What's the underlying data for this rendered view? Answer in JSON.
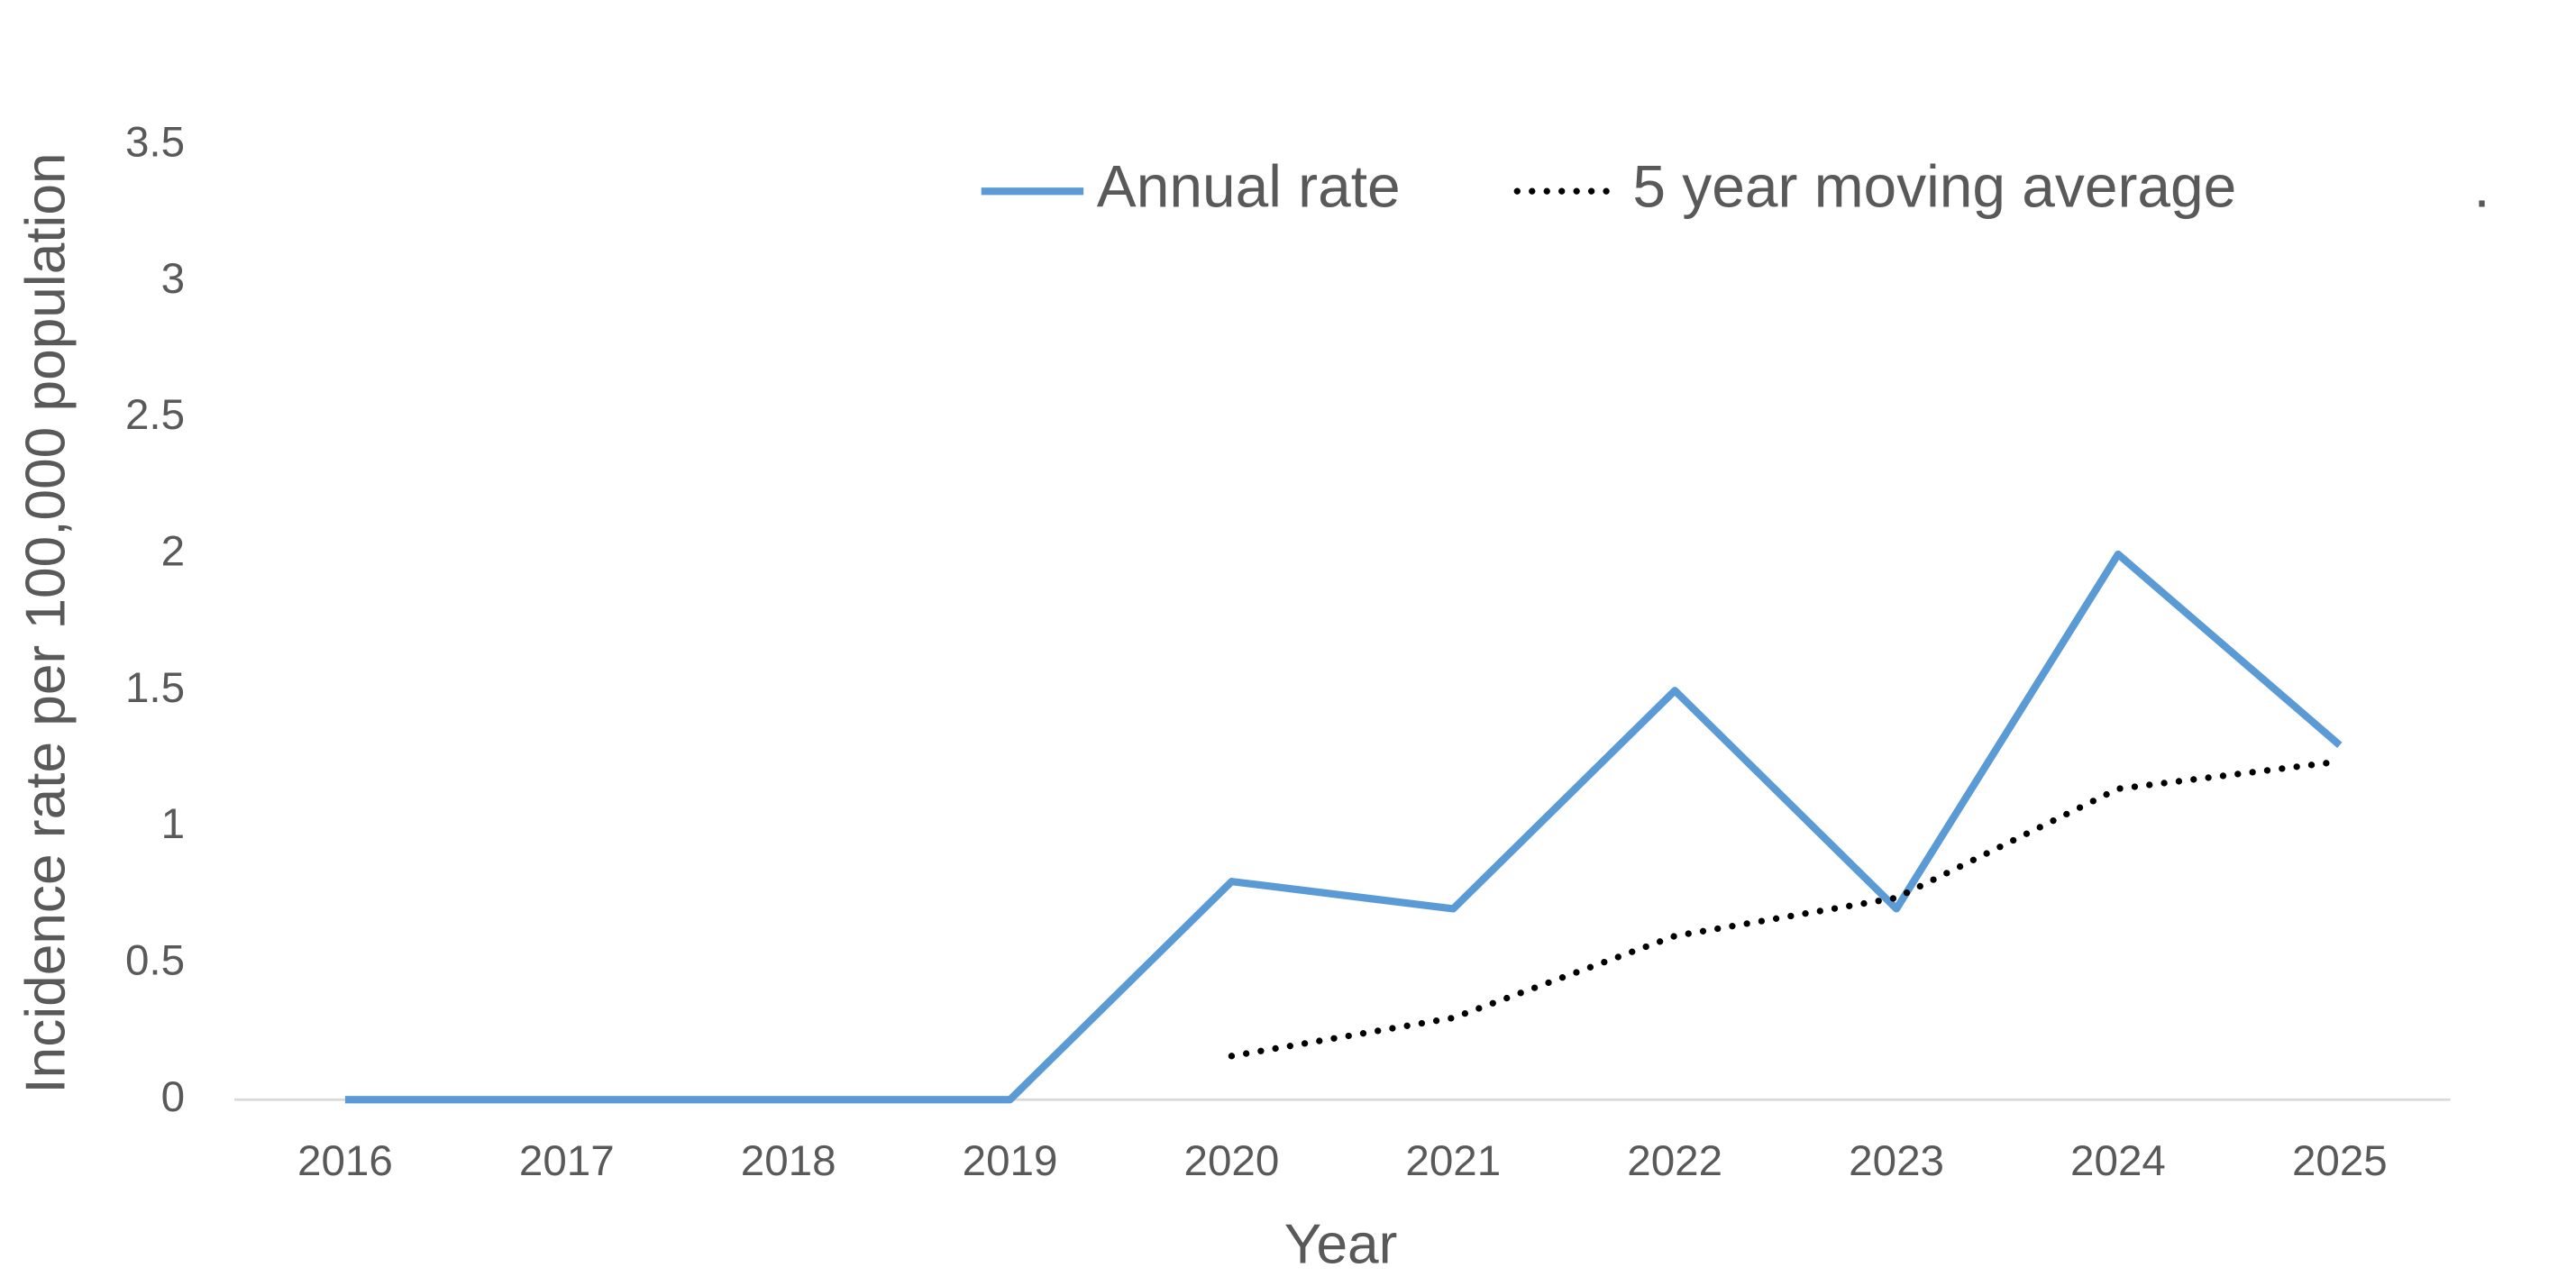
{
  "chart_data": {
    "type": "line",
    "x_label": "Year",
    "y_label": "Incidence rate per 100,000 population",
    "categories": [
      "2016",
      "2017",
      "2018",
      "2019",
      "2020",
      "2021",
      "2022",
      "2023",
      "2024",
      "2025"
    ],
    "series": [
      {
        "name": "Annual rate",
        "color": "#5b9bd5",
        "style": "solid",
        "values": [
          0,
          0,
          0,
          0,
          0.8,
          0.7,
          1.5,
          0.7,
          2.0,
          1.3
        ]
      },
      {
        "name": "5 year moving average",
        "color": "#000000",
        "style": "dotted",
        "values": [
          null,
          null,
          null,
          null,
          0.16,
          0.3,
          0.6,
          0.74,
          1.14,
          1.24
        ]
      },
      {
        "name": ".",
        "color": "#ffffff",
        "style": "solid",
        "values": [
          null,
          null,
          null,
          null,
          null,
          null,
          null,
          null,
          null,
          null
        ]
      }
    ],
    "ylim": [
      0,
      3.5
    ],
    "yticks": [
      0,
      0.5,
      1,
      1.5,
      2,
      2.5,
      3,
      3.5
    ],
    "grid": false,
    "legend": "top"
  }
}
